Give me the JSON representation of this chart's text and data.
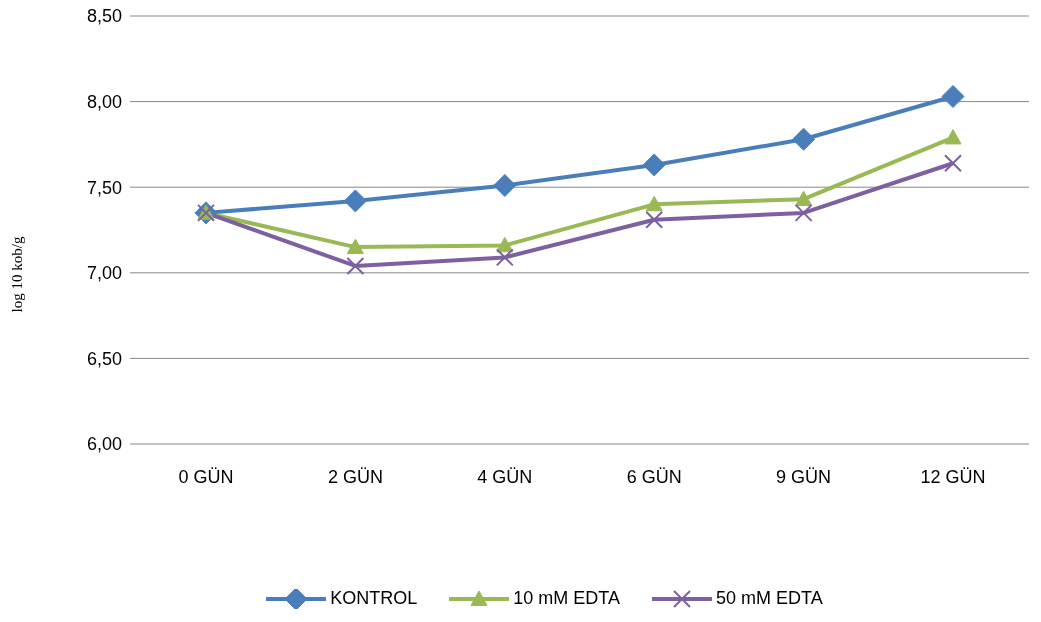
{
  "chart_data": {
    "type": "line",
    "ylabel": "log 10 kob/g",
    "categories": [
      "0 GÜN",
      "2 GÜN",
      "4 GÜN",
      "6 GÜN",
      "9 GÜN",
      "12 GÜN"
    ],
    "series": [
      {
        "name": "KONTROL",
        "color": "#4a7ebb",
        "marker": "diamond",
        "values": [
          7.35,
          7.42,
          7.51,
          7.63,
          7.78,
          8.03
        ]
      },
      {
        "name": "10 mM EDTA",
        "color": "#98b954",
        "marker": "triangle",
        "values": [
          7.35,
          7.15,
          7.16,
          7.4,
          7.43,
          7.79
        ]
      },
      {
        "name": "50 mM EDTA",
        "color": "#7d60a0",
        "marker": "cross",
        "values": [
          7.35,
          7.04,
          7.09,
          7.31,
          7.35,
          7.64
        ]
      }
    ],
    "ylim": [
      6,
      8.5
    ],
    "yticks": [
      {
        "value": 6,
        "label": "6,00"
      },
      {
        "value": 6.5,
        "label": "6,50"
      },
      {
        "value": 7,
        "label": "7,00"
      },
      {
        "value": 7.5,
        "label": "7,50"
      },
      {
        "value": 8,
        "label": "8,00"
      },
      {
        "value": 8.5,
        "label": "8,50"
      }
    ],
    "grid": "y",
    "legend": "bottom",
    "line_style": "solid"
  }
}
